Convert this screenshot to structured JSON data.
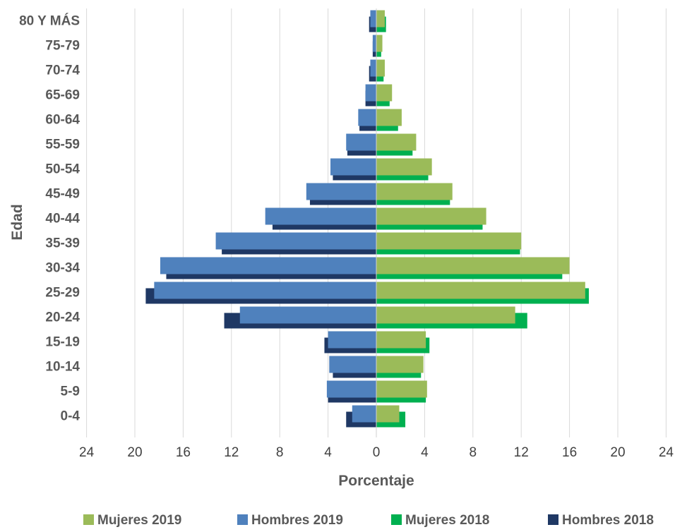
{
  "chart_data": {
    "type": "bar",
    "orientation": "horizontal",
    "title": "",
    "xlabel": "Porcentaje",
    "ylabel": "Edad",
    "categories": [
      "0-4",
      "5-9",
      "10-14",
      "15-19",
      "20-24",
      "25-29",
      "30-34",
      "35-39",
      "40-44",
      "45-49",
      "50-54",
      "55-59",
      "60-64",
      "65-69",
      "70-74",
      "75-79",
      "80 Y MÁS"
    ],
    "xlim": [
      -24,
      24
    ],
    "xticks": [
      -24,
      -20,
      -16,
      -12,
      -8,
      -4,
      0,
      4,
      8,
      12,
      16,
      20,
      24
    ],
    "xtick_labels": [
      "24",
      "20",
      "16",
      "12",
      "8",
      "4",
      "0",
      "4",
      "8",
      "12",
      "16",
      "20",
      "24"
    ],
    "grid": "vertical",
    "legend_position": "bottom",
    "series": [
      {
        "name": "Mujeres 2019",
        "color": "#9BBB59",
        "side": "right",
        "front": true,
        "values": [
          1.9,
          4.2,
          3.9,
          4.1,
          11.5,
          17.3,
          16.0,
          12.0,
          9.1,
          6.3,
          4.6,
          3.3,
          2.1,
          1.3,
          0.7,
          0.5,
          0.7
        ]
      },
      {
        "name": "Hombres 2019",
        "color": "#4F81BD",
        "side": "left",
        "front": true,
        "values": [
          2.0,
          4.1,
          3.9,
          4.0,
          11.3,
          18.4,
          17.9,
          13.3,
          9.2,
          5.8,
          3.8,
          2.5,
          1.5,
          0.9,
          0.5,
          0.3,
          0.5
        ]
      },
      {
        "name": "Mujeres 2018",
        "color": "#00B050",
        "side": "right",
        "front": false,
        "values": [
          2.4,
          4.1,
          3.7,
          4.4,
          12.5,
          17.6,
          15.4,
          11.9,
          8.8,
          6.1,
          4.3,
          3.0,
          1.8,
          1.1,
          0.6,
          0.4,
          0.8
        ]
      },
      {
        "name": "Hombres 2018",
        "color": "#1F3864",
        "side": "left",
        "front": false,
        "values": [
          2.5,
          4.0,
          3.6,
          4.3,
          12.6,
          19.1,
          17.4,
          12.8,
          8.6,
          5.5,
          3.6,
          2.4,
          1.4,
          0.9,
          0.6,
          0.3,
          0.6
        ]
      }
    ]
  }
}
